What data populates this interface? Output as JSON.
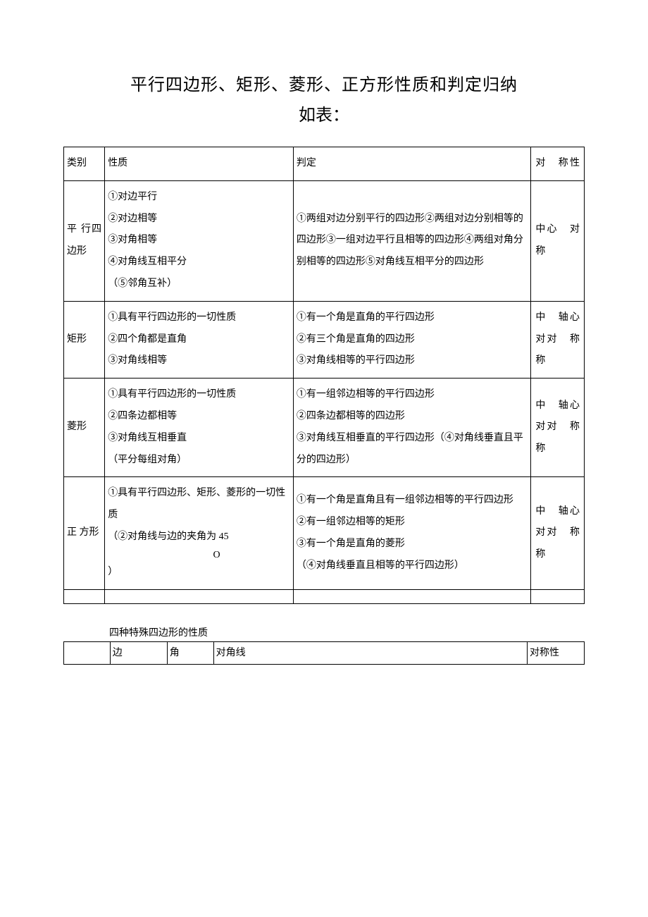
{
  "title": "平行四边形、矩形、菱形、正方形性质和判定归纳",
  "subtitle": "如表：",
  "main_table": {
    "header": {
      "col1": "类别",
      "col2": "性质",
      "col3": "判定",
      "col4": "对　称性"
    },
    "rows": [
      {
        "category": "平 行四 边形",
        "properties": "①对边平行\n②对边相等\n③对角相等\n④对角线互相平分\n（⑤邻角互补）",
        "judgment": "①两组对边分别平行的四边形②两组对边分别相等的四边形③一组对边平行且相等的四边形④两组对角分别相等的四边形⑤对角线互相平分的四边形",
        "symmetry": "中心　对称"
      },
      {
        "category": "矩形",
        "properties": "①具有平行四边形的一切性质\n②四个角都是直角\n③对角线相等",
        "judgment": "①有一个角是直角的平行四边形\n②有三个角是直角的四边形\n③对角线相等的平行四边形",
        "symmetry": "中　轴心　对对　称称"
      },
      {
        "category": "菱形",
        "properties": "①具有平行四边形的一切性质\n②四条边都相等\n③对角线互相垂直\n（平分每组对角）",
        "judgment": "①有一组邻边相等的平行四边形\n②四条边都相等的四边形\n③对角线互相垂直的平行四边形（④对角线垂直且平分的四边形）",
        "symmetry": "中　轴心　对对　称称"
      },
      {
        "category": "正 方形",
        "properties_line1": "①具有平行四边形、矩形、菱形的一切性质",
        "properties_line2": "（②对角线与边的夹角为 45",
        "properties_line3": "O",
        "properties_line4": "）",
        "judgment": "①有一个角是直角且有一组邻边相等的平行四边形\n②有一组邻边相等的矩形\n③有一个角是直角的菱形\n（④对角线垂直且相等的平行四边形）",
        "symmetry": "中　轴心　对对　称称"
      }
    ]
  },
  "section2_heading": "四种特殊四边形的性质",
  "table2": {
    "header": {
      "col1": "",
      "col2": "边",
      "col3": "角",
      "col4": "对角线",
      "col5": "对称性"
    }
  }
}
